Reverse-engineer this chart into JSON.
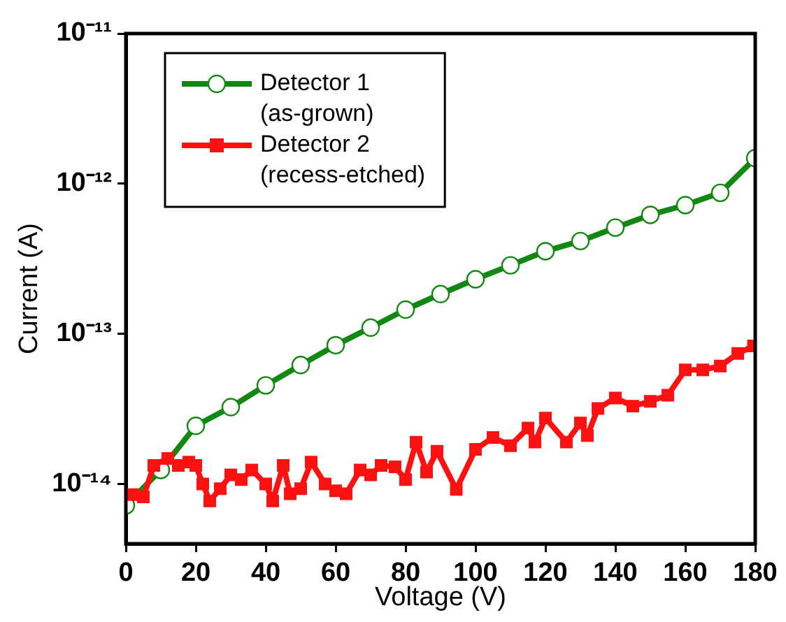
{
  "chart_data": {
    "type": "line",
    "xlabel": "Voltage (V)",
    "ylabel": "Current (A)",
    "log": "y",
    "xlim": [
      0,
      180
    ],
    "xticks": [
      0,
      20,
      40,
      60,
      80,
      100,
      120,
      140,
      160,
      180
    ],
    "ylim": [
      4e-15,
      1e-11
    ],
    "yticks": [
      {
        "value": 1e-14,
        "label": "10⁻¹⁴"
      },
      {
        "value": 1e-13,
        "label": "10⁻¹³"
      },
      {
        "value": 1e-12,
        "label": "10⁻¹²"
      },
      {
        "value": 1e-11,
        "label": "10⁻¹¹"
      }
    ],
    "grid": false,
    "legend": "top left",
    "line_style": "solid",
    "series": [
      {
        "name": "Detector 1\n(as-grown)",
        "color": "#118811",
        "marker": "circle",
        "x": [
          0,
          10,
          20,
          30,
          40,
          50,
          60,
          70,
          80,
          90,
          100,
          110,
          120,
          130,
          140,
          150,
          160,
          170,
          180
        ],
        "values": [
          7.2e-15,
          1.24e-14,
          2.44e-14,
          3.25e-14,
          4.54e-14,
          6.2e-14,
          8.4e-14,
          1.1e-13,
          1.45e-13,
          1.84e-13,
          2.31e-13,
          2.86e-13,
          3.55e-13,
          4.15e-13,
          5.1e-13,
          6.2e-13,
          7.2e-13,
          8.7e-13,
          1.48e-12
        ]
      },
      {
        "name": "Detector 2\n(recess-etched)",
        "color": "#ff1111",
        "marker": "square",
        "x": [
          2,
          5,
          8,
          12,
          15,
          18,
          20,
          22,
          24,
          27,
          30,
          33,
          36,
          40,
          42,
          45,
          47,
          50,
          53,
          57,
          60,
          63,
          67,
          70,
          73,
          77,
          80,
          83,
          86,
          89,
          94.5,
          100,
          105,
          110,
          115,
          117,
          120,
          126,
          130,
          132,
          135,
          140,
          145,
          150,
          155,
          160,
          165,
          170,
          175,
          179.5
        ],
        "values": [
          8.5e-15,
          8.2e-15,
          1.33e-14,
          1.48e-14,
          1.33e-14,
          1.4e-14,
          1.33e-14,
          1e-14,
          7.7e-15,
          9.3e-15,
          1.15e-14,
          1.07e-14,
          1.24e-14,
          1e-14,
          7.7e-15,
          1.33e-14,
          8.6e-15,
          9.3e-15,
          1.4e-14,
          1e-14,
          9e-15,
          8.6e-15,
          1.24e-14,
          1.15e-14,
          1.33e-14,
          1.3e-14,
          1.07e-14,
          1.9e-14,
          1.2e-14,
          1.65e-14,
          9.2e-15,
          1.7e-14,
          2.04e-14,
          1.8e-14,
          2.36e-14,
          1.9e-14,
          2.75e-14,
          1.9e-14,
          2.55e-14,
          2.1e-14,
          3.18e-14,
          3.74e-14,
          3.3e-14,
          3.55e-14,
          3.9e-14,
          5.75e-14,
          5.75e-14,
          6.1e-14,
          7.4e-14,
          8.3e-14
        ]
      }
    ]
  }
}
